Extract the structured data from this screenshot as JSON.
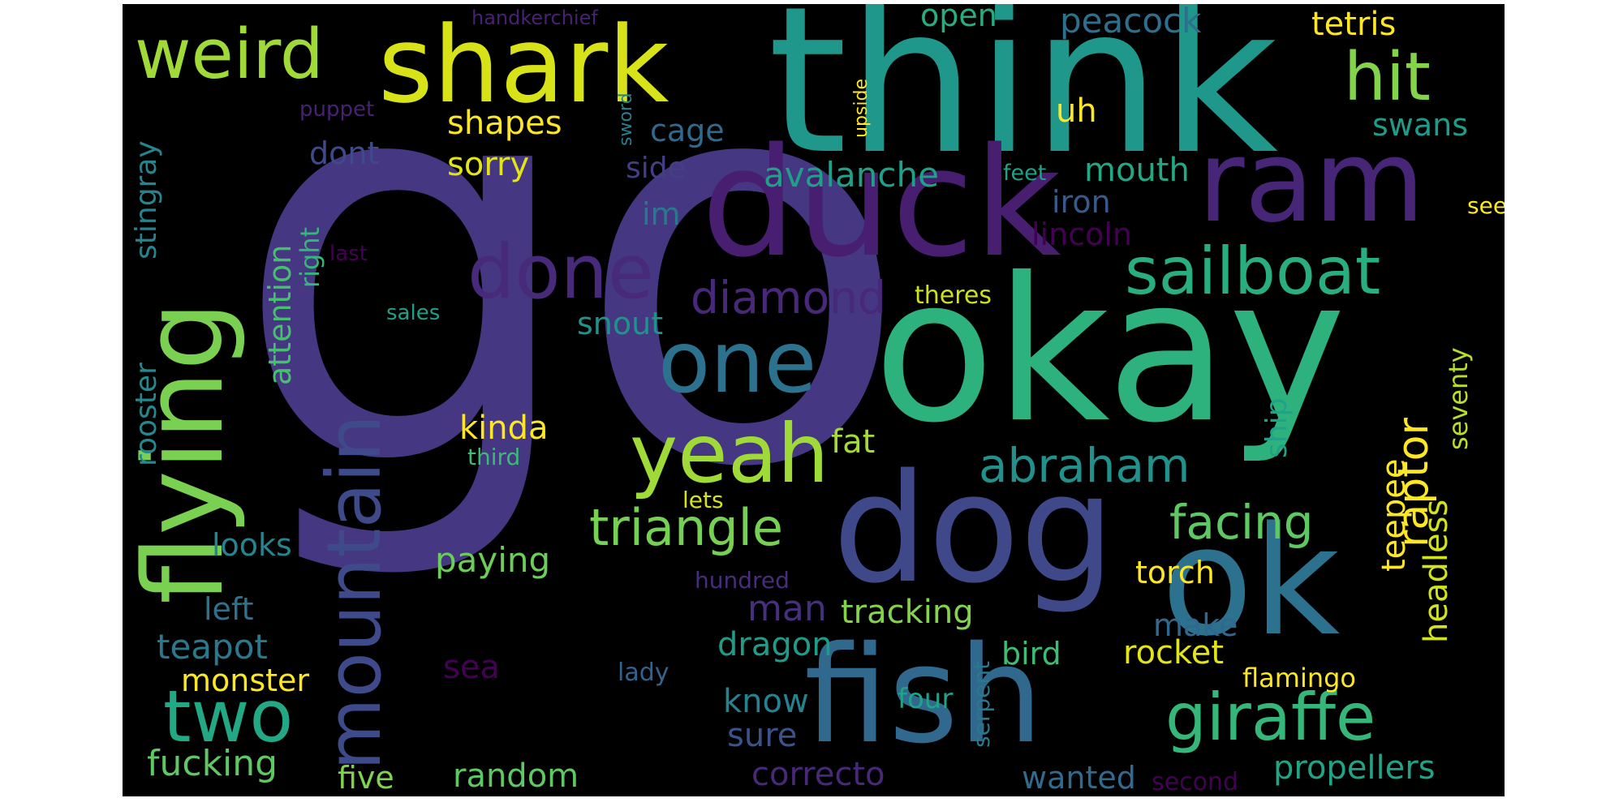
{
  "words": [
    {
      "text": "go",
      "color": "#453781"
    },
    {
      "text": "think",
      "color": "#1f978b"
    },
    {
      "text": "okay",
      "color": "#2db27d"
    },
    {
      "text": "duck",
      "color": "#481f70"
    },
    {
      "text": "dog",
      "color": "#3f4889"
    },
    {
      "text": "fish",
      "color": "#31688e"
    },
    {
      "text": "ok",
      "color": "#2c728e"
    },
    {
      "text": "shark",
      "color": "#d8e219"
    },
    {
      "text": "ram",
      "color": "#482677"
    },
    {
      "text": "flying",
      "color": "#7ad151"
    },
    {
      "text": "weird",
      "color": "#a0da39"
    },
    {
      "text": "mountain",
      "color": "#3e4a89"
    },
    {
      "text": "one",
      "color": "#2c728e"
    },
    {
      "text": "yeah",
      "color": "#a0da39"
    },
    {
      "text": "done",
      "color": "#472a7a"
    },
    {
      "text": "sailboat",
      "color": "#29af7f"
    },
    {
      "text": "giraffe",
      "color": "#35b779"
    },
    {
      "text": "two",
      "color": "#22a884"
    },
    {
      "text": "hit",
      "color": "#84d44b"
    },
    {
      "text": "abraham",
      "color": "#21918c"
    },
    {
      "text": "triangle",
      "color": "#75d054"
    },
    {
      "text": "facing",
      "color": "#5ec962"
    },
    {
      "text": "diamond",
      "color": "#482878"
    },
    {
      "text": "raptor",
      "color": "#fde725"
    },
    {
      "text": "avalanche",
      "color": "#1fa088"
    },
    {
      "text": "kinda",
      "color": "#fde725"
    },
    {
      "text": "shapes",
      "color": "#fde725"
    },
    {
      "text": "sorry",
      "color": "#e2e418"
    },
    {
      "text": "tetris",
      "color": "#fde725"
    },
    {
      "text": "peacock",
      "color": "#2d708e"
    },
    {
      "text": "open",
      "color": "#27ad81"
    },
    {
      "text": "uh",
      "color": "#fde725"
    },
    {
      "text": "cage",
      "color": "#31688e"
    },
    {
      "text": "side",
      "color": "#433e85"
    },
    {
      "text": "swans",
      "color": "#1e9c89"
    },
    {
      "text": "mouth",
      "color": "#22a884"
    },
    {
      "text": "iron",
      "color": "#38598c"
    },
    {
      "text": "lincoln",
      "color": "#440154"
    },
    {
      "text": "feet",
      "color": "#1fa187"
    },
    {
      "text": "see",
      "color": "#fde725"
    },
    {
      "text": "dont",
      "color": "#3e4a89"
    },
    {
      "text": "im",
      "color": "#2a788e"
    },
    {
      "text": "snout",
      "color": "#21918c"
    },
    {
      "text": "theres",
      "color": "#cde11d"
    },
    {
      "text": "sales",
      "color": "#1f9e89"
    },
    {
      "text": "last",
      "color": "#440154"
    },
    {
      "text": "right",
      "color": "#35b779"
    },
    {
      "text": "attention",
      "color": "#46c06f"
    },
    {
      "text": "stingray",
      "color": "#25848e"
    },
    {
      "text": "rooster",
      "color": "#23898e"
    },
    {
      "text": "puppet",
      "color": "#482173"
    },
    {
      "text": "handkerchief",
      "color": "#482173"
    },
    {
      "text": "sword",
      "color": "#26818e"
    },
    {
      "text": "upside",
      "color": "#fde725"
    },
    {
      "text": "third",
      "color": "#3bbb75"
    },
    {
      "text": "fat",
      "color": "#a5db36"
    },
    {
      "text": "lets",
      "color": "#d5e21a"
    },
    {
      "text": "looks",
      "color": "#25848e"
    },
    {
      "text": "paying",
      "color": "#6ccd5a"
    },
    {
      "text": "man",
      "color": "#462f7c"
    },
    {
      "text": "tracking",
      "color": "#84d44b"
    },
    {
      "text": "hundred",
      "color": "#472d7b"
    },
    {
      "text": "left",
      "color": "#2c728e"
    },
    {
      "text": "teapot",
      "color": "#2a788e"
    },
    {
      "text": "dragon",
      "color": "#1e9c89"
    },
    {
      "text": "bird",
      "color": "#3dbc74"
    },
    {
      "text": "make",
      "color": "#31688e"
    },
    {
      "text": "rocket",
      "color": "#e2e418"
    },
    {
      "text": "torch",
      "color": "#fde725"
    },
    {
      "text": "teepee",
      "color": "#fde725"
    },
    {
      "text": "headless",
      "color": "#d2e21b"
    },
    {
      "text": "seventy",
      "color": "#b8de29"
    },
    {
      "text": "ship",
      "color": "#1fa287"
    },
    {
      "text": "flamingo",
      "color": "#fde725"
    },
    {
      "text": "serpent",
      "color": "#2a788e"
    },
    {
      "text": "four",
      "color": "#1fa287"
    },
    {
      "text": "lady",
      "color": "#33638d"
    },
    {
      "text": "sea",
      "color": "#440154"
    },
    {
      "text": "monster",
      "color": "#fde725"
    },
    {
      "text": "know",
      "color": "#26828e"
    },
    {
      "text": "sure",
      "color": "#3b528b"
    },
    {
      "text": "fucking",
      "color": "#5ec962"
    },
    {
      "text": "five",
      "color": "#7fd34e"
    },
    {
      "text": "random",
      "color": "#5ec962"
    },
    {
      "text": "correcto",
      "color": "#482878"
    },
    {
      "text": "wanted",
      "color": "#306a8e"
    },
    {
      "text": "second",
      "color": "#440154"
    },
    {
      "text": "propellers",
      "color": "#20a486"
    }
  ]
}
